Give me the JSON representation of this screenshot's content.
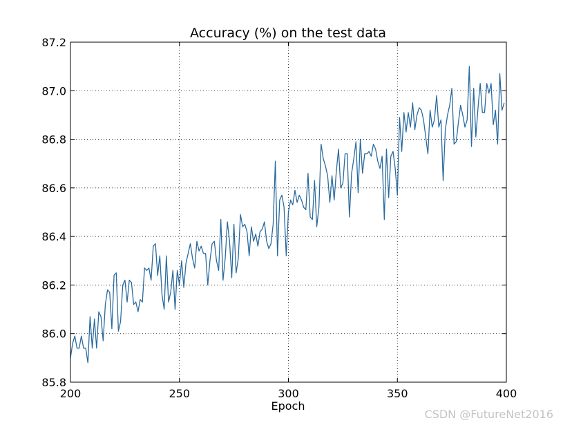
{
  "chart_data": {
    "type": "line",
    "title": "Accuracy (%) on the test data",
    "xlabel": "Epoch",
    "ylabel": "",
    "xlim": [
      200,
      400
    ],
    "ylim": [
      85.8,
      87.2
    ],
    "xticks": [
      200,
      250,
      300,
      350,
      400
    ],
    "xtick_labels": [
      "200",
      "250",
      "300",
      "350",
      "400"
    ],
    "yticks": [
      85.8,
      86.0,
      86.2,
      86.4,
      86.6,
      86.8,
      87.0,
      87.2
    ],
    "ytick_labels": [
      "85.8",
      "86.0",
      "86.2",
      "86.4",
      "86.6",
      "86.8",
      "87.0",
      "87.2"
    ],
    "grid": true,
    "line_color": "#2a6a9e",
    "x_start": 200,
    "x_step": 1,
    "series": [
      {
        "values": [
          85.9,
          85.96,
          85.99,
          85.94,
          85.94,
          85.99,
          85.94,
          85.94,
          85.88,
          86.07,
          85.94,
          86.06,
          85.94,
          86.09,
          86.07,
          85.97,
          86.12,
          86.18,
          86.17,
          86.02,
          86.24,
          86.25,
          86.01,
          86.05,
          86.2,
          86.22,
          86.13,
          86.22,
          86.21,
          86.12,
          86.13,
          86.09,
          86.14,
          86.13,
          86.27,
          86.26,
          86.27,
          86.22,
          86.36,
          86.37,
          86.24,
          86.32,
          86.16,
          86.1,
          86.32,
          86.13,
          86.17,
          86.26,
          86.1,
          86.26,
          86.2,
          86.3,
          86.19,
          86.29,
          86.33,
          86.37,
          86.31,
          86.27,
          86.38,
          86.34,
          86.36,
          86.33,
          86.33,
          86.2,
          86.3,
          86.37,
          86.38,
          86.3,
          86.26,
          86.47,
          86.22,
          86.31,
          86.46,
          86.38,
          86.23,
          86.45,
          86.25,
          86.31,
          86.49,
          86.44,
          86.45,
          86.42,
          86.32,
          86.44,
          86.38,
          86.41,
          86.36,
          86.42,
          86.43,
          86.46,
          86.38,
          86.35,
          86.37,
          86.45,
          86.71,
          86.32,
          86.55,
          86.57,
          86.52,
          86.32,
          86.5,
          86.55,
          86.53,
          86.59,
          86.54,
          86.57,
          86.55,
          86.52,
          86.51,
          86.66,
          86.48,
          86.47,
          86.63,
          86.44,
          86.52,
          86.78,
          86.72,
          86.69,
          86.65,
          86.54,
          86.65,
          86.55,
          86.67,
          86.76,
          86.6,
          86.62,
          86.74,
          86.74,
          86.48,
          86.66,
          86.72,
          86.79,
          86.58,
          86.8,
          86.66,
          86.74,
          86.74,
          86.75,
          86.73,
          86.78,
          86.76,
          86.71,
          86.68,
          86.73,
          86.47,
          86.76,
          86.56,
          86.73,
          86.75,
          86.68,
          86.57,
          86.89,
          86.75,
          86.91,
          86.83,
          86.91,
          86.85,
          86.95,
          86.84,
          86.9,
          86.93,
          86.92,
          86.88,
          86.81,
          86.74,
          86.92,
          86.85,
          86.88,
          86.98,
          86.85,
          86.88,
          86.63,
          86.84,
          86.9,
          86.94,
          87.01,
          86.78,
          86.79,
          86.87,
          86.94,
          86.9,
          86.85,
          86.88,
          87.1,
          86.77,
          87.01,
          86.81,
          86.93,
          87.03,
          86.91,
          86.91,
          87.03,
          86.99,
          87.03,
          86.86,
          86.92,
          86.78,
          87.07,
          86.92,
          86.95
        ]
      }
    ]
  },
  "watermark": "CSDN @FutureNet2016"
}
